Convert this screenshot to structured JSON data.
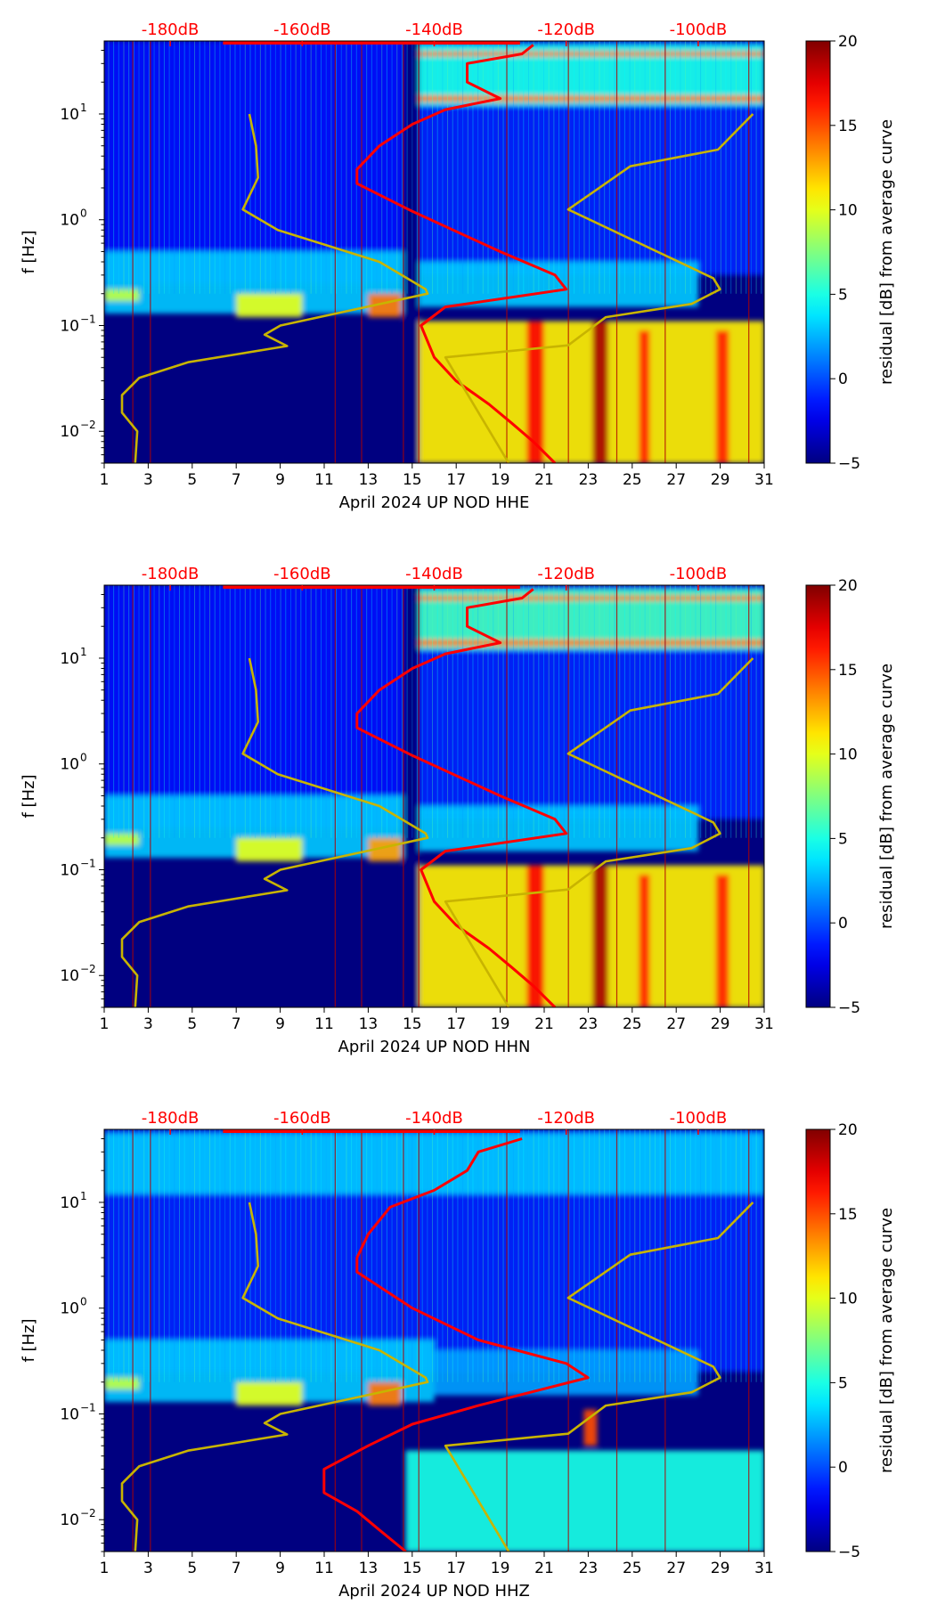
{
  "chart_data": [
    {
      "type": "heatmap",
      "xlabel": "April 2024 UP NOD  HHE",
      "ylabel": "f [Hz]",
      "colorbar_label": "residual [dB] from average curve",
      "xlim": [
        1,
        31
      ],
      "ylim": [
        0.005,
        49
      ],
      "yscale": "log",
      "xticks": [
        1,
        3,
        5,
        7,
        9,
        11,
        13,
        15,
        17,
        19,
        21,
        23,
        25,
        27,
        29,
        31
      ],
      "yticks": [
        {
          "v": 0.01,
          "label": "10",
          "exp": "−2"
        },
        {
          "v": 0.1,
          "label": "10",
          "exp": "−1"
        },
        {
          "v": 1,
          "label": "10",
          "exp": "0"
        },
        {
          "v": 10,
          "label": "10",
          "exp": "1"
        }
      ],
      "top_axis": {
        "dB_range": [
          -190,
          -90
        ],
        "ticks": [
          -180,
          -160,
          -140,
          -120,
          -100
        ],
        "labels": [
          "-180dB",
          "-160dB",
          "-140dB",
          "-120dB",
          "-100dB"
        ],
        "color": "#ff0000"
      },
      "colorbar": {
        "range": [
          -5,
          20
        ],
        "ticks": [
          -5,
          0,
          5,
          10,
          15,
          20
        ],
        "labels": [
          "−5",
          "0",
          "5",
          "10",
          "15",
          "20"
        ]
      },
      "heatmap_regions": [
        {
          "days": [
            1,
            14.6
          ],
          "freq": [
            0.25,
            49
          ],
          "residual": -1.5
        },
        {
          "days": [
            1,
            14.6
          ],
          "freq": [
            0.13,
            0.5
          ],
          "residual": 3
        },
        {
          "days": [
            7,
            10
          ],
          "freq": [
            0.12,
            0.2
          ],
          "residual": 10
        },
        {
          "days": [
            13,
            14.5
          ],
          "freq": [
            0.12,
            0.2
          ],
          "residual": 14
        },
        {
          "days": [
            1,
            2.6
          ],
          "freq": [
            0.17,
            0.22
          ],
          "residual": 9
        },
        {
          "days": [
            15.3,
            31
          ],
          "freq": [
            0.3,
            49
          ],
          "residual": -1
        },
        {
          "days": [
            15.3,
            31
          ],
          "freq": [
            12,
            45
          ],
          "residual": 5
        },
        {
          "days": [
            15.3,
            31
          ],
          "freq": [
            13,
            15
          ],
          "residual": 14
        },
        {
          "days": [
            15.3,
            31
          ],
          "freq": [
            35,
            39
          ],
          "residual": 14
        },
        {
          "days": [
            15.3,
            28
          ],
          "freq": [
            0.15,
            0.4
          ],
          "residual": 3
        },
        {
          "days": [
            15.3,
            31
          ],
          "freq": [
            0.005,
            0.11
          ],
          "residual": 11
        },
        {
          "days": [
            20.2,
            21
          ],
          "freq": [
            0.005,
            0.11
          ],
          "residual": 17
        },
        {
          "days": [
            23.2,
            23.9
          ],
          "freq": [
            0.005,
            0.11
          ],
          "residual": 19
        },
        {
          "days": [
            25.3,
            25.8
          ],
          "freq": [
            0.005,
            0.09
          ],
          "residual": 16
        },
        {
          "days": [
            28.8,
            29.4
          ],
          "freq": [
            0.005,
            0.09
          ],
          "residual": 16
        },
        {
          "days": [
            14.6,
            15.3
          ],
          "freq": [
            0.005,
            49
          ],
          "residual": -5
        }
      ],
      "vertical_line_days": [
        2.3,
        3.1,
        11.5,
        12.7,
        14.6,
        15.3,
        19.3,
        22.1,
        24.3,
        26.5,
        30.3
      ],
      "series": [
        {
          "name": "average curve",
          "color": "#ff0000",
          "freq": [
            0.005,
            0.008,
            0.012,
            0.018,
            0.03,
            0.05,
            0.1,
            0.15,
            0.22,
            0.3,
            0.5,
            1.2,
            2.2,
            3,
            5,
            8,
            11,
            14,
            20,
            30,
            37,
            45
          ],
          "dB": [
            -121.7,
            -125,
            -128.3,
            -131.7,
            -136.7,
            -140,
            -142,
            -138.3,
            -120,
            -121.7,
            -130,
            -143.3,
            -151.7,
            -151.7,
            -148.3,
            -143.3,
            -138.3,
            -130,
            -135,
            -135,
            -126.7,
            -125
          ]
        },
        {
          "name": "low noise model",
          "color": "#c8b400",
          "freq": [
            0.005,
            0.01,
            0.015,
            0.022,
            0.032,
            0.045,
            0.064,
            0.082,
            0.1,
            0.2,
            0.22,
            0.4,
            0.8,
            1.25,
            2.5,
            5,
            10
          ],
          "dB": [
            -185.3,
            -185,
            -187.3,
            -187.3,
            -184.7,
            -177.3,
            -162.3,
            -165.7,
            -163.3,
            -141,
            -141.3,
            -148.3,
            -163.7,
            -169,
            -166.7,
            -167,
            -168
          ]
        },
        {
          "name": "high noise model",
          "color": "#c8b400",
          "freq": [
            0.005,
            0.05,
            0.065,
            0.12,
            0.16,
            0.22,
            0.28,
            1.25,
            3.2,
            4.6,
            10
          ],
          "dB": [
            -128.7,
            -138.3,
            -119.7,
            -114,
            -101,
            -96.7,
            -97.7,
            -119.7,
            -110.3,
            -97,
            -91.7
          ]
        }
      ]
    },
    {
      "type": "heatmap",
      "xlabel": "April 2024 UP NOD  HHN",
      "ylabel": "f [Hz]",
      "colorbar_label": "residual [dB] from average curve",
      "xlim": [
        1,
        31
      ],
      "ylim": [
        0.005,
        49
      ],
      "yscale": "log",
      "xticks": [
        1,
        3,
        5,
        7,
        9,
        11,
        13,
        15,
        17,
        19,
        21,
        23,
        25,
        27,
        29,
        31
      ],
      "yticks": [
        {
          "v": 0.01,
          "label": "10",
          "exp": "−2"
        },
        {
          "v": 0.1,
          "label": "10",
          "exp": "−1"
        },
        {
          "v": 1,
          "label": "10",
          "exp": "0"
        },
        {
          "v": 10,
          "label": "10",
          "exp": "1"
        }
      ],
      "top_axis": {
        "dB_range": [
          -190,
          -90
        ],
        "ticks": [
          -180,
          -160,
          -140,
          -120,
          -100
        ],
        "labels": [
          "-180dB",
          "-160dB",
          "-140dB",
          "-120dB",
          "-100dB"
        ],
        "color": "#ff0000"
      },
      "colorbar": {
        "range": [
          -5,
          20
        ],
        "ticks": [
          -5,
          0,
          5,
          10,
          15,
          20
        ],
        "labels": [
          "−5",
          "0",
          "5",
          "10",
          "15",
          "20"
        ]
      },
      "heatmap_regions": [
        {
          "days": [
            1,
            14.6
          ],
          "freq": [
            0.25,
            49
          ],
          "residual": -1.5
        },
        {
          "days": [
            1,
            14.6
          ],
          "freq": [
            0.13,
            0.5
          ],
          "residual": 3
        },
        {
          "days": [
            7,
            10
          ],
          "freq": [
            0.12,
            0.2
          ],
          "residual": 10
        },
        {
          "days": [
            13,
            14.5
          ],
          "freq": [
            0.12,
            0.2
          ],
          "residual": 13
        },
        {
          "days": [
            1,
            2.6
          ],
          "freq": [
            0.17,
            0.22
          ],
          "residual": 9
        },
        {
          "days": [
            15.3,
            31
          ],
          "freq": [
            0.3,
            49
          ],
          "residual": -1
        },
        {
          "days": [
            15.3,
            31
          ],
          "freq": [
            12,
            45
          ],
          "residual": 6
        },
        {
          "days": [
            15.3,
            31
          ],
          "freq": [
            13,
            15
          ],
          "residual": 14
        },
        {
          "days": [
            15.3,
            31
          ],
          "freq": [
            35,
            39
          ],
          "residual": 14
        },
        {
          "days": [
            15.3,
            28
          ],
          "freq": [
            0.15,
            0.4
          ],
          "residual": 3
        },
        {
          "days": [
            15.3,
            31
          ],
          "freq": [
            0.005,
            0.11
          ],
          "residual": 11
        },
        {
          "days": [
            20.2,
            21
          ],
          "freq": [
            0.005,
            0.11
          ],
          "residual": 17
        },
        {
          "days": [
            23.2,
            23.9
          ],
          "freq": [
            0.005,
            0.11
          ],
          "residual": 19
        },
        {
          "days": [
            25.3,
            25.8
          ],
          "freq": [
            0.005,
            0.09
          ],
          "residual": 16
        },
        {
          "days": [
            28.8,
            29.4
          ],
          "freq": [
            0.005,
            0.09
          ],
          "residual": 16
        },
        {
          "days": [
            14.6,
            15.3
          ],
          "freq": [
            0.005,
            49
          ],
          "residual": -5
        }
      ],
      "vertical_line_days": [
        2.3,
        3.1,
        11.5,
        12.7,
        14.6,
        15.3,
        19.3,
        22.1,
        24.3,
        26.5,
        30.3
      ],
      "series": [
        {
          "name": "average curve",
          "color": "#ff0000",
          "freq": [
            0.005,
            0.008,
            0.012,
            0.018,
            0.03,
            0.05,
            0.1,
            0.15,
            0.22,
            0.3,
            0.5,
            1.2,
            2.2,
            3,
            5,
            8,
            11,
            14,
            20,
            30,
            37,
            45
          ],
          "dB": [
            -121.7,
            -125,
            -128.3,
            -131.7,
            -136.7,
            -140,
            -142,
            -138.3,
            -120,
            -121.7,
            -130,
            -143.3,
            -151.7,
            -151.7,
            -148.3,
            -143.3,
            -138.3,
            -130,
            -135,
            -135,
            -126.7,
            -125
          ]
        },
        {
          "name": "low noise model",
          "color": "#c8b400",
          "freq": [
            0.005,
            0.01,
            0.015,
            0.022,
            0.032,
            0.045,
            0.064,
            0.082,
            0.1,
            0.2,
            0.22,
            0.4,
            0.8,
            1.25,
            2.5,
            5,
            10
          ],
          "dB": [
            -185.3,
            -185,
            -187.3,
            -187.3,
            -184.7,
            -177.3,
            -162.3,
            -165.7,
            -163.3,
            -141,
            -141.3,
            -148.3,
            -163.7,
            -169,
            -166.7,
            -167,
            -168
          ]
        },
        {
          "name": "high noise model",
          "color": "#c8b400",
          "freq": [
            0.005,
            0.05,
            0.065,
            0.12,
            0.16,
            0.22,
            0.28,
            1.25,
            3.2,
            4.6,
            10
          ],
          "dB": [
            -128.7,
            -138.3,
            -119.7,
            -114,
            -101,
            -96.7,
            -97.7,
            -119.7,
            -110.3,
            -97,
            -91.7
          ]
        }
      ]
    },
    {
      "type": "heatmap",
      "xlabel": "April 2024 UP NOD  HHZ",
      "ylabel": "f [Hz]",
      "colorbar_label": "residual [dB] from average curve",
      "xlim": [
        1,
        31
      ],
      "ylim": [
        0.005,
        49
      ],
      "yscale": "log",
      "xticks": [
        1,
        3,
        5,
        7,
        9,
        11,
        13,
        15,
        17,
        19,
        21,
        23,
        25,
        27,
        29,
        31
      ],
      "yticks": [
        {
          "v": 0.01,
          "label": "10",
          "exp": "−2"
        },
        {
          "v": 0.1,
          "label": "10",
          "exp": "−1"
        },
        {
          "v": 1,
          "label": "10",
          "exp": "0"
        },
        {
          "v": 10,
          "label": "10",
          "exp": "1"
        }
      ],
      "top_axis": {
        "dB_range": [
          -190,
          -90
        ],
        "ticks": [
          -180,
          -160,
          -140,
          -120,
          -100
        ],
        "labels": [
          "-180dB",
          "-160dB",
          "-140dB",
          "-120dB",
          "-100dB"
        ],
        "color": "#ff0000"
      },
      "colorbar": {
        "range": [
          -5,
          20
        ],
        "ticks": [
          -5,
          0,
          5,
          10,
          15,
          20
        ],
        "labels": [
          "−5",
          "0",
          "5",
          "10",
          "15",
          "20"
        ]
      },
      "heatmap_regions": [
        {
          "days": [
            1,
            31
          ],
          "freq": [
            0.25,
            49
          ],
          "residual": -1
        },
        {
          "days": [
            1,
            31
          ],
          "freq": [
            12,
            45
          ],
          "residual": 3
        },
        {
          "days": [
            1,
            16
          ],
          "freq": [
            0.13,
            0.5
          ],
          "residual": 3
        },
        {
          "days": [
            7,
            10
          ],
          "freq": [
            0.12,
            0.2
          ],
          "residual": 10
        },
        {
          "days": [
            13,
            14.5
          ],
          "freq": [
            0.12,
            0.2
          ],
          "residual": 14
        },
        {
          "days": [
            1,
            2.6
          ],
          "freq": [
            0.17,
            0.22
          ],
          "residual": 9
        },
        {
          "days": [
            16,
            28
          ],
          "freq": [
            0.15,
            0.4
          ],
          "residual": 2
        },
        {
          "days": [
            14.7,
            31
          ],
          "freq": [
            0.005,
            0.045
          ],
          "residual": 5
        },
        {
          "days": [
            22.8,
            23.4
          ],
          "freq": [
            0.05,
            0.11
          ],
          "residual": 15
        }
      ],
      "vertical_line_days": [
        2.3,
        3.1,
        11.5,
        12.7,
        14.6,
        15.3,
        19.3,
        22.1,
        24.3,
        26.5,
        30.3
      ],
      "series": [
        {
          "name": "average curve",
          "color": "#ff0000",
          "freq": [
            0.005,
            0.008,
            0.012,
            0.018,
            0.03,
            0.05,
            0.08,
            0.12,
            0.22,
            0.3,
            0.5,
            1,
            2.2,
            3,
            5,
            9,
            13,
            20,
            30,
            40
          ],
          "dB": [
            -144.3,
            -148.3,
            -151.7,
            -156.7,
            -156.7,
            -150,
            -143.3,
            -133.3,
            -116.7,
            -120,
            -133.3,
            -143.3,
            -151.7,
            -151.7,
            -150,
            -146.7,
            -140,
            -135,
            -133.3,
            -126.7
          ]
        },
        {
          "name": "low noise model",
          "color": "#c8b400",
          "freq": [
            0.005,
            0.01,
            0.015,
            0.022,
            0.032,
            0.045,
            0.064,
            0.082,
            0.1,
            0.2,
            0.22,
            0.4,
            0.8,
            1.25,
            2.5,
            5,
            10
          ],
          "dB": [
            -185.3,
            -185,
            -187.3,
            -187.3,
            -184.7,
            -177.3,
            -162.3,
            -165.7,
            -163.3,
            -141,
            -141.3,
            -148.3,
            -163.7,
            -169,
            -166.7,
            -167,
            -168
          ]
        },
        {
          "name": "high noise model",
          "color": "#c8b400",
          "freq": [
            0.005,
            0.05,
            0.065,
            0.12,
            0.16,
            0.22,
            0.28,
            1.25,
            3.2,
            4.6,
            10
          ],
          "dB": [
            -128.7,
            -138.3,
            -119.7,
            -114,
            -101,
            -96.7,
            -97.7,
            -119.7,
            -110.3,
            -97,
            -91.7
          ]
        }
      ]
    }
  ]
}
